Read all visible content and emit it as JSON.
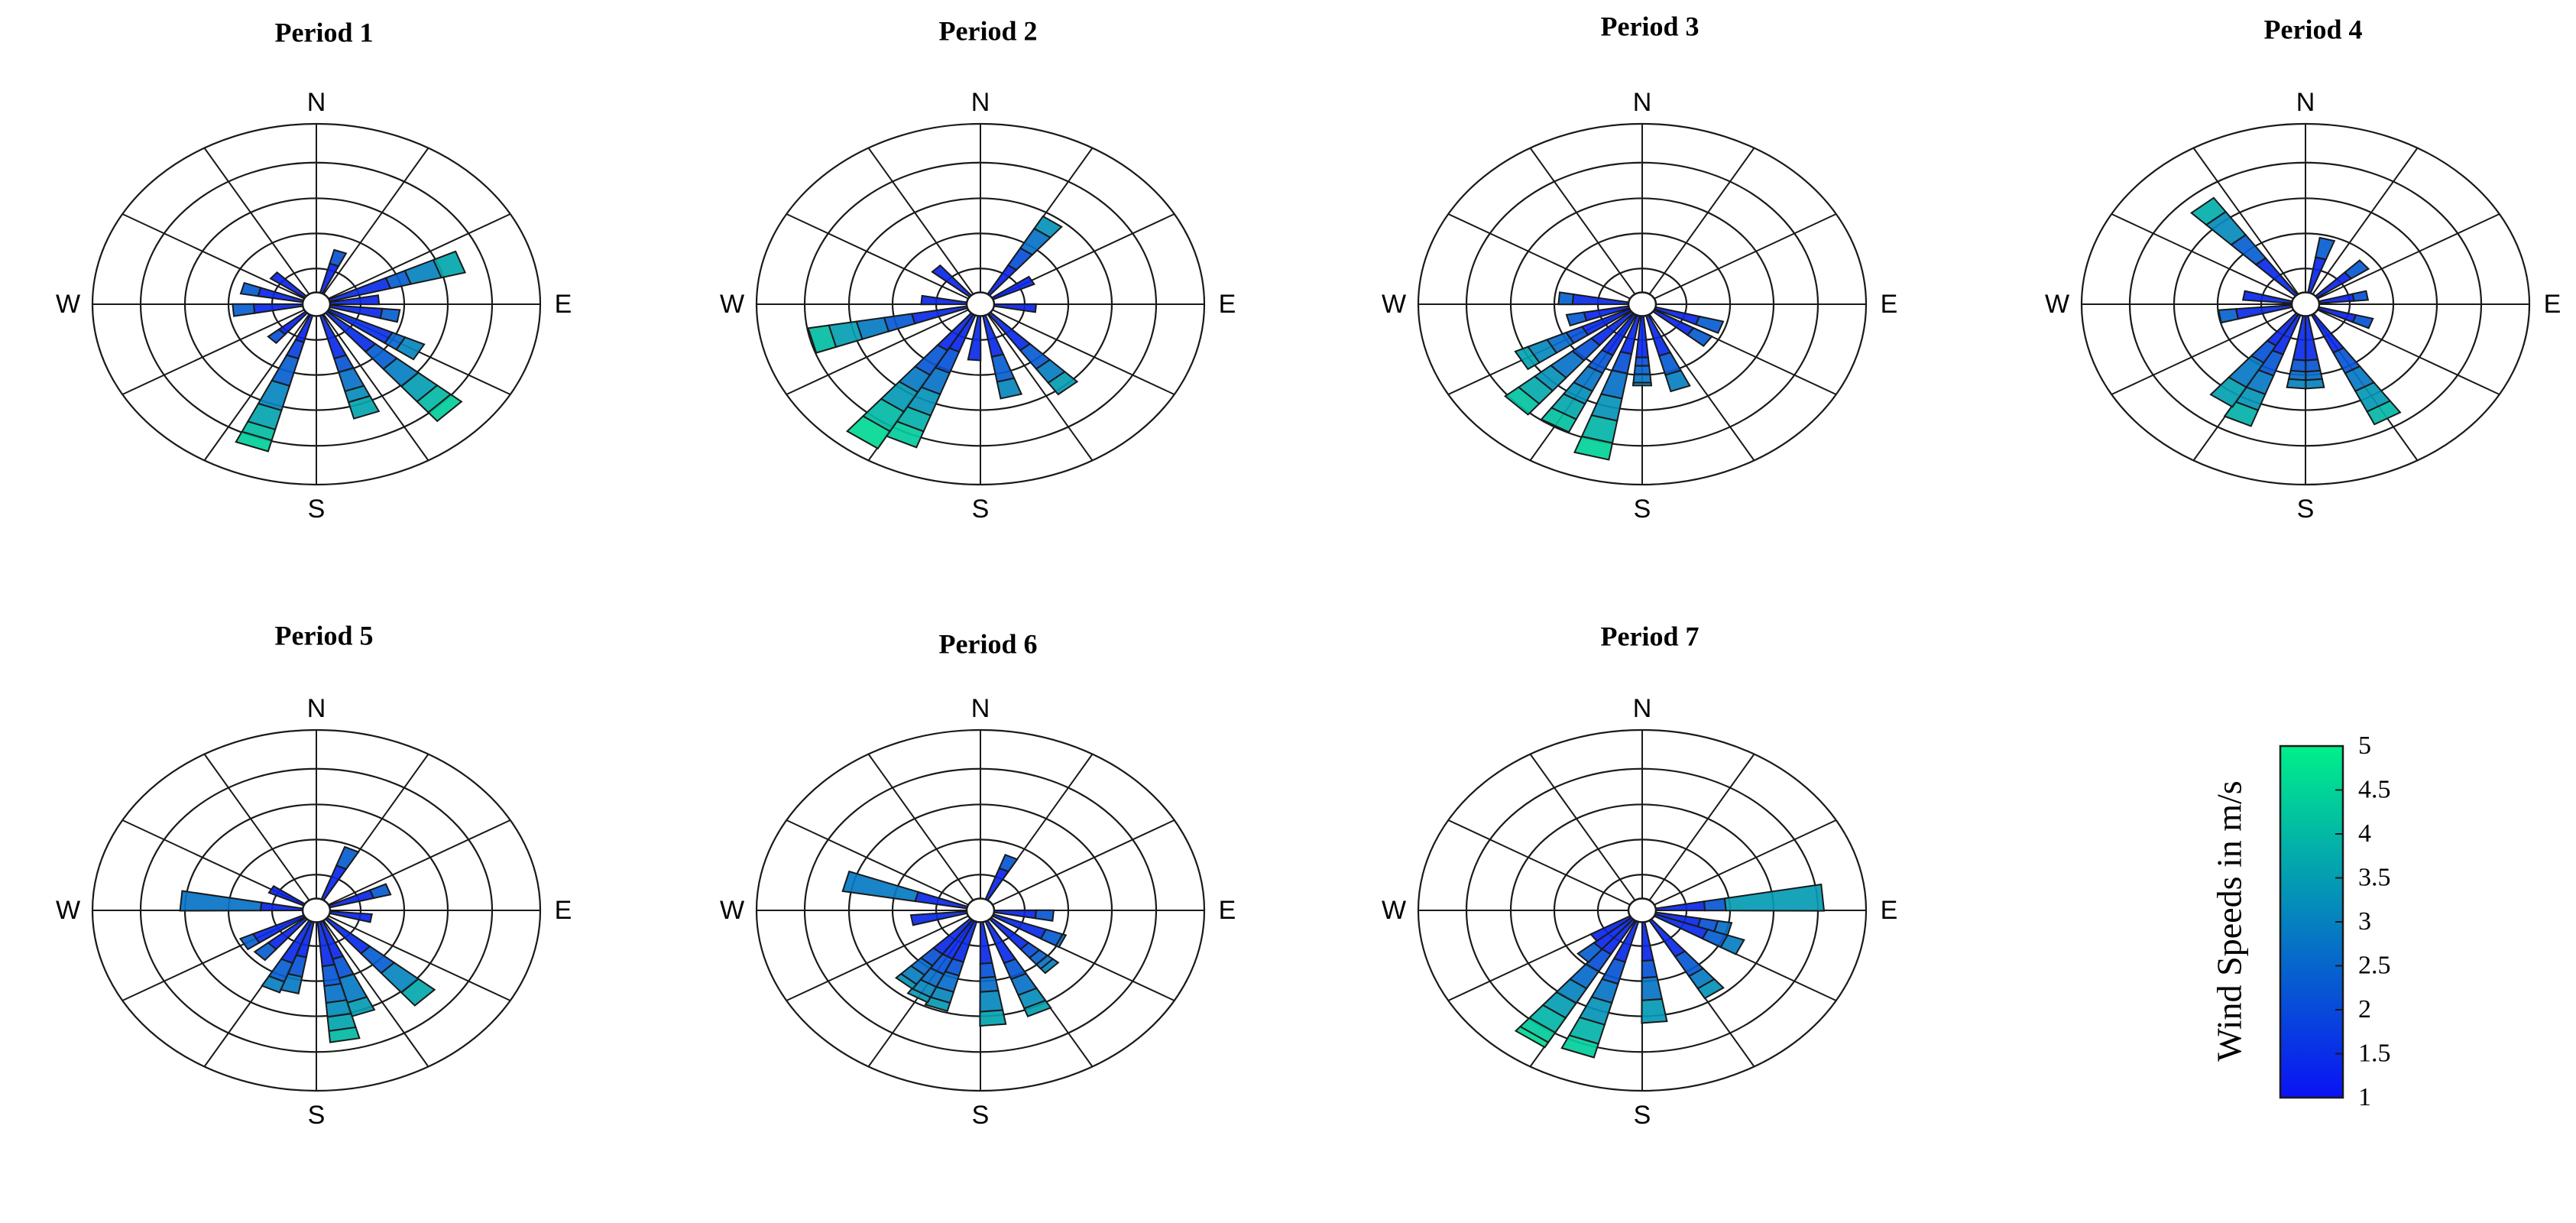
{
  "chart_data": [
    {
      "type": "windrose",
      "title": "Period 1",
      "directions": [
        "N",
        "E",
        "S",
        "W"
      ],
      "petals": [
        {
          "angle": 20,
          "segments": [
            1.1,
            1.6
          ]
        },
        {
          "angle": 70,
          "segments": [
            1.8,
            2.4,
            3.3,
            4.0
          ]
        },
        {
          "angle": 85,
          "segments": [
            1.4
          ]
        },
        {
          "angle": 100,
          "segments": [
            1.5,
            2.0
          ]
        },
        {
          "angle": 120,
          "segments": [
            2.0,
            2.4,
            3.0
          ]
        },
        {
          "angle": 135,
          "segments": [
            1.8,
            2.6,
            3.4,
            4.1,
            4.6,
            5.0
          ]
        },
        {
          "angle": 160,
          "segments": [
            1.6,
            2.1,
            2.8,
            3.2,
            3.8
          ]
        },
        {
          "angle": 200,
          "segments": [
            1.0,
            1.6,
            2.6,
            3.5,
            4.2,
            4.6,
            5.0
          ]
        },
        {
          "angle": 225,
          "segments": [
            1.0,
            1.4
          ]
        },
        {
          "angle": 265,
          "segments": [
            1.4,
            2.0
          ]
        },
        {
          "angle": 285,
          "segments": [
            1.3,
            1.8
          ]
        },
        {
          "angle": 310,
          "segments": [
            1.2
          ]
        }
      ]
    },
    {
      "type": "windrose",
      "title": "Period 2",
      "directions": [
        "N",
        "E",
        "S",
        "W"
      ],
      "petals": [
        {
          "angle": 35,
          "segments": [
            1.2,
            1.9,
            2.7,
            3.2
          ]
        },
        {
          "angle": 60,
          "segments": [
            1.3
          ]
        },
        {
          "angle": 95,
          "segments": [
            1.2
          ]
        },
        {
          "angle": 140,
          "segments": [
            1.6,
            2.4,
            3.0,
            3.5
          ]
        },
        {
          "angle": 165,
          "segments": [
            1.5,
            2.4,
            3.0
          ]
        },
        {
          "angle": 185,
          "segments": [
            1.6
          ]
        },
        {
          "angle": 205,
          "segments": [
            1.4,
            2.2,
            3.0,
            3.8,
            4.4,
            5.0
          ]
        },
        {
          "angle": 215,
          "segments": [
            1.5,
            2.5,
            3.2,
            4.0,
            4.8,
            5.5
          ]
        },
        {
          "angle": 255,
          "segments": [
            1.6,
            2.4,
            3.2,
            4.0,
            4.6
          ]
        },
        {
          "angle": 275,
          "segments": [
            1.3
          ]
        },
        {
          "angle": 315,
          "segments": [
            1.4
          ]
        }
      ]
    },
    {
      "type": "windrose",
      "title": "Period 3",
      "directions": [
        "N",
        "E",
        "S",
        "W"
      ],
      "petals": [
        {
          "angle": 110,
          "segments": [
            1.3,
            2.0
          ]
        },
        {
          "angle": 125,
          "segments": [
            1.3,
            1.9
          ]
        },
        {
          "angle": 160,
          "segments": [
            1.5,
            2.2,
            2.8
          ]
        },
        {
          "angle": 180,
          "segments": [
            1.5,
            1.8,
            2.1,
            2.4,
            2.5
          ]
        },
        {
          "angle": 195,
          "segments": [
            1.4,
            2.1,
            3.0,
            3.8,
            4.6,
            5.2
          ]
        },
        {
          "angle": 210,
          "segments": [
            1.6,
            2.3,
            3.0,
            3.5,
            4.1,
            4.6
          ]
        },
        {
          "angle": 225,
          "segments": [
            1.5,
            2.2,
            3.0,
            3.6,
            4.2,
            4.7
          ]
        },
        {
          "angle": 240,
          "segments": [
            1.5,
            2.0,
            2.6,
            3.2,
            3.6
          ]
        },
        {
          "angle": 255,
          "segments": [
            1.3,
            1.8
          ]
        },
        {
          "angle": 275,
          "segments": [
            1.6,
            2.0
          ]
        }
      ]
    },
    {
      "type": "windrose",
      "title": "Period 4",
      "directions": [
        "N",
        "E",
        "S",
        "W"
      ],
      "petals": [
        {
          "angle": 15,
          "segments": [
            1.3,
            2.0
          ]
        },
        {
          "angle": 50,
          "segments": [
            1.2,
            1.8
          ]
        },
        {
          "angle": 80,
          "segments": [
            1.0,
            1.4
          ]
        },
        {
          "angle": 110,
          "segments": [
            1.1,
            1.6
          ]
        },
        {
          "angle": 150,
          "segments": [
            1.5,
            2.3,
            3.0,
            3.8,
            4.3
          ]
        },
        {
          "angle": 175,
          "segments": [
            1.6,
            2.0,
            2.3,
            2.6
          ]
        },
        {
          "angle": 185,
          "segments": [
            1.6,
            2.0,
            2.3,
            2.6
          ]
        },
        {
          "angle": 205,
          "segments": [
            1.5,
            2.3,
            3.0,
            3.6,
            4.2
          ]
        },
        {
          "angle": 215,
          "segments": [
            1.3,
            2.0,
            3.0,
            3.8
          ]
        },
        {
          "angle": 260,
          "segments": [
            1.6,
            2.1
          ]
        },
        {
          "angle": 280,
          "segments": [
            1.4
          ]
        },
        {
          "angle": 320,
          "segments": [
            1.6,
            2.6,
            3.6,
            4.2
          ]
        }
      ]
    },
    {
      "type": "windrose",
      "title": "Period 5",
      "directions": [
        "N",
        "E",
        "S",
        "W"
      ],
      "petals": [
        {
          "angle": 25,
          "segments": [
            1.3,
            2.0
          ]
        },
        {
          "angle": 70,
          "segments": [
            1.3,
            1.8
          ]
        },
        {
          "angle": 100,
          "segments": [
            1.2
          ]
        },
        {
          "angle": 135,
          "segments": [
            1.6,
            2.5,
            3.4,
            4.0
          ]
        },
        {
          "angle": 160,
          "segments": [
            1.4,
            2.1,
            3.0,
            3.5
          ]
        },
        {
          "angle": 170,
          "segments": [
            1.6,
            2.3,
            2.9,
            3.4,
            3.9,
            4.3
          ]
        },
        {
          "angle": 195,
          "segments": [
            1.3,
            2.0,
            2.6
          ]
        },
        {
          "angle": 205,
          "segments": [
            1.6,
            2.3,
            2.7
          ]
        },
        {
          "angle": 225,
          "segments": [
            1.4,
            1.9
          ]
        },
        {
          "angle": 240,
          "segments": [
            1.6,
            2.0
          ]
        },
        {
          "angle": 275,
          "segments": [
            1.2,
            3.5
          ]
        },
        {
          "angle": 300,
          "segments": [
            1.1
          ]
        }
      ]
    },
    {
      "type": "windrose",
      "title": "Period 6",
      "directions": [
        "N",
        "E",
        "S",
        "W"
      ],
      "petals": [
        {
          "angle": 25,
          "segments": [
            1.2,
            1.7
          ]
        },
        {
          "angle": 95,
          "segments": [
            1.2,
            1.7
          ]
        },
        {
          "angle": 115,
          "segments": [
            1.6,
            2.1,
            2.2
          ]
        },
        {
          "angle": 135,
          "segments": [
            1.4,
            1.8,
            2.1,
            2.3,
            2.5
          ]
        },
        {
          "angle": 155,
          "segments": [
            1.6,
            2.2,
            2.8,
            3.3,
            3.6
          ]
        },
        {
          "angle": 175,
          "segments": [
            1.5,
            2.0,
            2.5,
            3.2,
            3.7
          ]
        },
        {
          "angle": 200,
          "segments": [
            1.5,
            2.0,
            2.6,
            3.0,
            3.3
          ]
        },
        {
          "angle": 210,
          "segments": [
            1.5,
            2.1,
            2.6,
            3.0,
            3.2
          ]
        },
        {
          "angle": 220,
          "segments": [
            1.5,
            2.0,
            2.4,
            2.8,
            3.0
          ]
        },
        {
          "angle": 260,
          "segments": [
            1.6
          ]
        },
        {
          "angle": 285,
          "segments": [
            1.5,
            3.6
          ]
        }
      ]
    },
    {
      "type": "windrose",
      "title": "Period 7",
      "directions": [
        "N",
        "E",
        "S",
        "W"
      ],
      "petals": [
        {
          "angle": 85,
          "segments": [
            1.4,
            2.0,
            4.8
          ]
        },
        {
          "angle": 105,
          "segments": [
            1.3,
            1.8,
            2.2
          ]
        },
        {
          "angle": 115,
          "segments": [
            1.6,
            2.2,
            2.7
          ]
        },
        {
          "angle": 145,
          "segments": [
            1.5,
            2.3,
            2.8,
            3.2
          ]
        },
        {
          "angle": 175,
          "segments": [
            1.4,
            2.0,
            2.8,
            3.6
          ]
        },
        {
          "angle": 200,
          "segments": [
            1.5,
            2.3,
            3.0,
            3.8,
            4.5,
            5.0
          ]
        },
        {
          "angle": 215,
          "segments": [
            1.4,
            2.1,
            2.8,
            3.4,
            4.0,
            4.6,
            5.0,
            5.2
          ]
        },
        {
          "angle": 225,
          "segments": [
            1.4,
            2.0
          ]
        },
        {
          "angle": 235,
          "segments": [
            1.3
          ]
        }
      ]
    }
  ],
  "colorbar": {
    "label": "Wind Speeds in m/s",
    "min": 1,
    "max": 5,
    "ticks": [
      "5",
      "4.5",
      "4",
      "3.5",
      "3",
      "2.5",
      "2",
      "1.5",
      "1"
    ],
    "color_low": "#0a12f5",
    "color_high": "#00f08a"
  }
}
